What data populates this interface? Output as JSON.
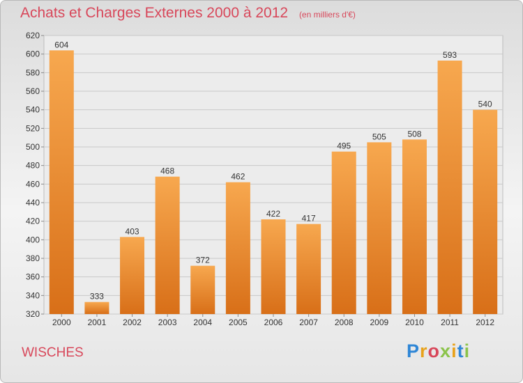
{
  "chart_data": {
    "type": "bar",
    "title": "Achats et Charges Externes 2000 à 2012",
    "subtitle": "(en milliers d'€)",
    "categories": [
      "2000",
      "2001",
      "2002",
      "2003",
      "2004",
      "2005",
      "2006",
      "2007",
      "2008",
      "2009",
      "2010",
      "2011",
      "2012"
    ],
    "values": [
      604,
      333,
      403,
      468,
      372,
      462,
      422,
      417,
      495,
      505,
      508,
      593,
      540
    ],
    "ylim": [
      320,
      620
    ],
    "yticks": [
      320,
      340,
      360,
      380,
      400,
      420,
      440,
      460,
      480,
      500,
      520,
      540,
      560,
      580,
      600,
      620
    ],
    "grid": true,
    "bar_color": "#f08a2b"
  },
  "footer": {
    "commune": "WISCHES",
    "brand": "Proxiti"
  }
}
